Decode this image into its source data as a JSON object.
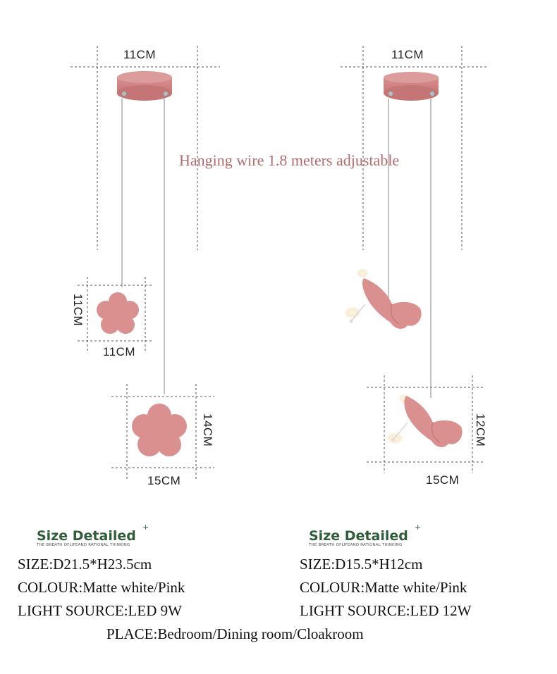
{
  "dimensions": {
    "left_canopy": "11CM",
    "right_canopy": "11CM",
    "small_flower_height": "11CM",
    "small_flower_width": "11CM",
    "large_flower_height": "14CM",
    "large_flower_width": "15CM",
    "butterfly_height": "12CM",
    "butterfly_width": "15CM"
  },
  "wire_note": "Hanging wire 1.8 meters adjustable",
  "left_spec": {
    "heading": "Size Detailed",
    "heading_mark": "+",
    "tagline": "THE BREATH OFLIFEAND RATIONAL THINKING",
    "size": "SIZE:D21.5*H23.5cm",
    "colour": "COLOUR:Matte white/Pink",
    "light_source": "LIGHT SOURCE:LED 9W"
  },
  "right_spec": {
    "heading": "Size Detailed",
    "heading_mark": "+",
    "tagline": "THE BREATH OFLIFEAND RATIONAL THINKING",
    "size": "SIZE:D15.5*H12cm",
    "colour": "COLOUR:Matte white/Pink",
    "light_source": "LIGHT SOURCE:LED 12W"
  },
  "place": "PLACE:Bedroom/Dining room/Cloakroom",
  "colors": {
    "pink": "#d9908f",
    "pink_dark": "#c97b7b",
    "note": "#b26a6e",
    "heading_green": "#2f5d3a",
    "dash": "#555555"
  }
}
